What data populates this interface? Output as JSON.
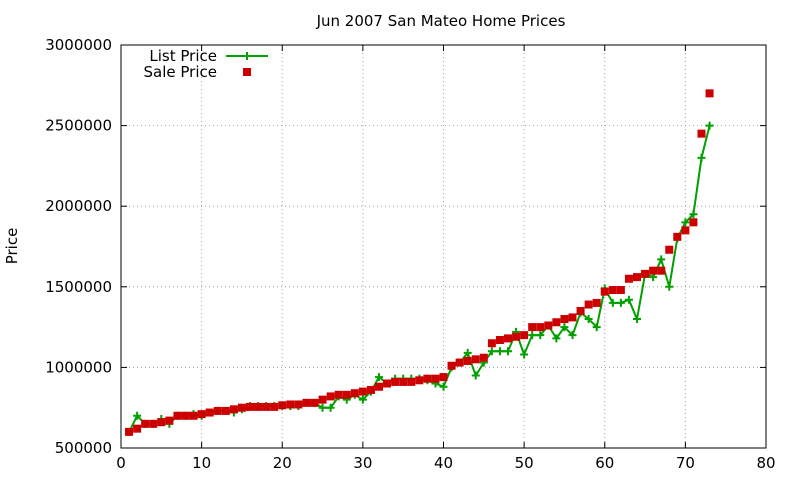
{
  "chart_data": {
    "type": "line",
    "title": "Jun 2007 San Mateo Home Prices",
    "xlabel": "",
    "ylabel": "Price",
    "xlim": [
      0,
      80
    ],
    "ylim": [
      500000,
      3000000
    ],
    "xticks": [
      0,
      10,
      20,
      30,
      40,
      50,
      60,
      70,
      80
    ],
    "xtick_labels": [
      "0",
      "10",
      "20",
      "30",
      "40",
      "50",
      "60",
      "70",
      "80"
    ],
    "yticks": [
      500000,
      1000000,
      1500000,
      2000000,
      2500000,
      3000000
    ],
    "ytick_labels": [
      "500000",
      "1000000",
      "1500000",
      "2000000",
      "2500000",
      "3000000"
    ],
    "grid": true,
    "legend_position": "top-left",
    "series": [
      {
        "name": "List Price",
        "style": "line-plus",
        "color": "#00a000",
        "points": [
          [
            1,
            600000
          ],
          [
            2,
            700000
          ],
          [
            3,
            650000
          ],
          [
            4,
            650000
          ],
          [
            5,
            680000
          ],
          [
            6,
            650000
          ],
          [
            7,
            700000
          ],
          [
            8,
            700000
          ],
          [
            9,
            710000
          ],
          [
            10,
            700000
          ],
          [
            11,
            720000
          ],
          [
            12,
            730000
          ],
          [
            13,
            730000
          ],
          [
            14,
            720000
          ],
          [
            15,
            740000
          ],
          [
            16,
            760000
          ],
          [
            17,
            760000
          ],
          [
            18,
            760000
          ],
          [
            19,
            760000
          ],
          [
            20,
            760000
          ],
          [
            21,
            760000
          ],
          [
            22,
            760000
          ],
          [
            23,
            780000
          ],
          [
            24,
            780000
          ],
          [
            25,
            750000
          ],
          [
            26,
            750000
          ],
          [
            27,
            820000
          ],
          [
            28,
            800000
          ],
          [
            29,
            830000
          ],
          [
            30,
            800000
          ],
          [
            31,
            850000
          ],
          [
            32,
            940000
          ],
          [
            33,
            900000
          ],
          [
            34,
            930000
          ],
          [
            35,
            930000
          ],
          [
            36,
            930000
          ],
          [
            37,
            930000
          ],
          [
            38,
            920000
          ],
          [
            39,
            900000
          ],
          [
            40,
            880000
          ],
          [
            41,
            1000000
          ],
          [
            42,
            1030000
          ],
          [
            43,
            1090000
          ],
          [
            44,
            950000
          ],
          [
            45,
            1030000
          ],
          [
            46,
            1100000
          ],
          [
            47,
            1100000
          ],
          [
            48,
            1100000
          ],
          [
            49,
            1220000
          ],
          [
            50,
            1080000
          ],
          [
            51,
            1200000
          ],
          [
            52,
            1200000
          ],
          [
            53,
            1260000
          ],
          [
            54,
            1180000
          ],
          [
            55,
            1250000
          ],
          [
            56,
            1200000
          ],
          [
            57,
            1340000
          ],
          [
            58,
            1300000
          ],
          [
            59,
            1250000
          ],
          [
            60,
            1490000
          ],
          [
            61,
            1400000
          ],
          [
            62,
            1400000
          ],
          [
            63,
            1420000
          ],
          [
            64,
            1300000
          ],
          [
            65,
            1580000
          ],
          [
            66,
            1560000
          ],
          [
            67,
            1670000
          ],
          [
            68,
            1500000
          ],
          [
            69,
            1800000
          ],
          [
            70,
            1900000
          ],
          [
            71,
            1950000
          ],
          [
            72,
            2300000
          ],
          [
            73,
            2500000
          ]
        ]
      },
      {
        "name": "Sale Price",
        "style": "square-points",
        "color": "#cc0000",
        "points": [
          [
            1,
            600000
          ],
          [
            2,
            620000
          ],
          [
            3,
            650000
          ],
          [
            4,
            650000
          ],
          [
            5,
            660000
          ],
          [
            6,
            670000
          ],
          [
            7,
            700000
          ],
          [
            8,
            700000
          ],
          [
            9,
            700000
          ],
          [
            10,
            710000
          ],
          [
            11,
            720000
          ],
          [
            12,
            730000
          ],
          [
            13,
            730000
          ],
          [
            14,
            740000
          ],
          [
            15,
            750000
          ],
          [
            16,
            755000
          ],
          [
            17,
            755000
          ],
          [
            18,
            755000
          ],
          [
            19,
            755000
          ],
          [
            20,
            765000
          ],
          [
            21,
            770000
          ],
          [
            22,
            770000
          ],
          [
            23,
            780000
          ],
          [
            24,
            780000
          ],
          [
            25,
            800000
          ],
          [
            26,
            820000
          ],
          [
            27,
            830000
          ],
          [
            28,
            830000
          ],
          [
            29,
            840000
          ],
          [
            30,
            850000
          ],
          [
            31,
            860000
          ],
          [
            32,
            880000
          ],
          [
            33,
            900000
          ],
          [
            34,
            910000
          ],
          [
            35,
            910000
          ],
          [
            36,
            910000
          ],
          [
            37,
            920000
          ],
          [
            38,
            930000
          ],
          [
            39,
            930000
          ],
          [
            40,
            940000
          ],
          [
            41,
            1010000
          ],
          [
            42,
            1030000
          ],
          [
            43,
            1040000
          ],
          [
            44,
            1050000
          ],
          [
            45,
            1060000
          ],
          [
            46,
            1150000
          ],
          [
            47,
            1170000
          ],
          [
            48,
            1180000
          ],
          [
            49,
            1190000
          ],
          [
            50,
            1200000
          ],
          [
            51,
            1250000
          ],
          [
            52,
            1250000
          ],
          [
            53,
            1260000
          ],
          [
            54,
            1280000
          ],
          [
            55,
            1300000
          ],
          [
            56,
            1310000
          ],
          [
            57,
            1350000
          ],
          [
            58,
            1390000
          ],
          [
            59,
            1400000
          ],
          [
            60,
            1470000
          ],
          [
            61,
            1480000
          ],
          [
            62,
            1480000
          ],
          [
            63,
            1550000
          ],
          [
            64,
            1560000
          ],
          [
            65,
            1580000
          ],
          [
            66,
            1600000
          ],
          [
            67,
            1600000
          ],
          [
            68,
            1730000
          ],
          [
            69,
            1810000
          ],
          [
            70,
            1850000
          ],
          [
            71,
            1900000
          ],
          [
            72,
            2450000
          ],
          [
            73,
            2700000
          ]
        ]
      }
    ]
  }
}
